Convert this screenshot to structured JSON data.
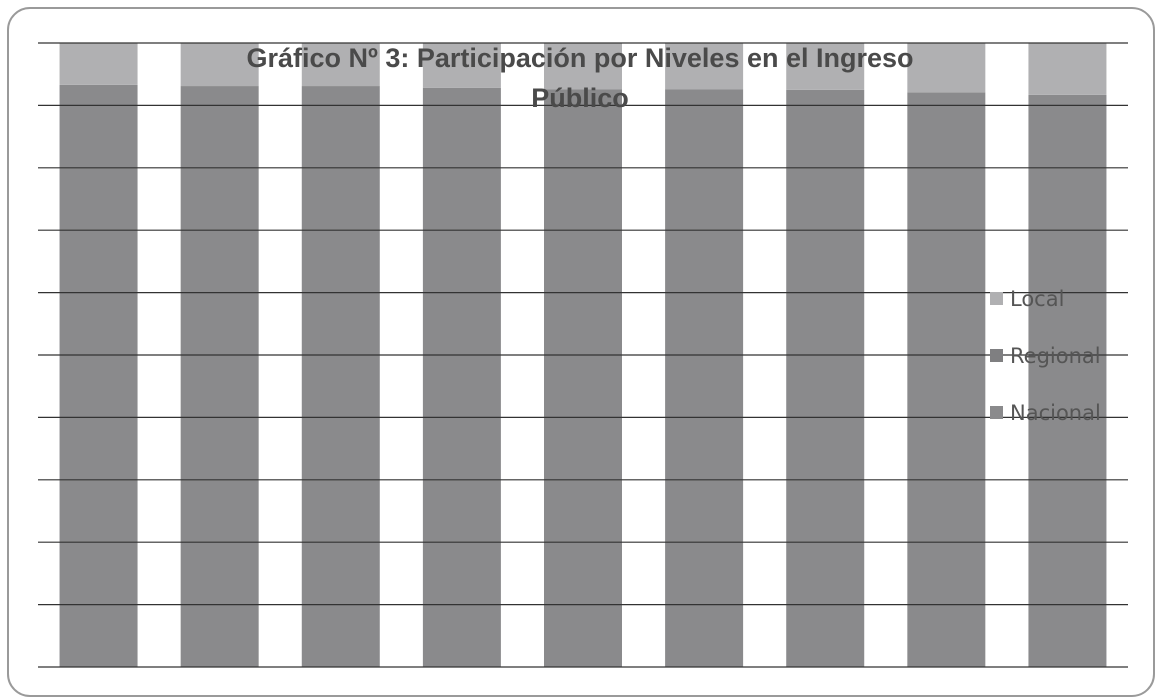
{
  "chart_data": {
    "type": "stacked_bar",
    "title": "Gráfico Nº 3: Participación por Niveles en el Ingreso Público",
    "categories": [
      null,
      null,
      null,
      null,
      null,
      null,
      null,
      null,
      null
    ],
    "series": [
      {
        "name": "Nacional",
        "color": "#8a8a8c",
        "values": [
          93.3,
          93.1,
          93.1,
          92.8,
          92.6,
          92.6,
          92.5,
          92.1,
          91.7
        ]
      },
      {
        "name": "Regional",
        "color": "#7f7f81",
        "values": [
          0,
          0,
          0,
          0,
          0,
          0,
          0,
          0,
          0
        ]
      },
      {
        "name": "Local",
        "color": "#b0b0b2",
        "values": [
          6.7,
          6.9,
          6.9,
          7.2,
          7.4,
          7.4,
          7.5,
          7.9,
          8.3
        ]
      }
    ],
    "ylim": [
      0,
      100
    ],
    "yticks": [
      0,
      10,
      20,
      30,
      40,
      50,
      60,
      70,
      80,
      90,
      100
    ],
    "grid": true
  }
}
